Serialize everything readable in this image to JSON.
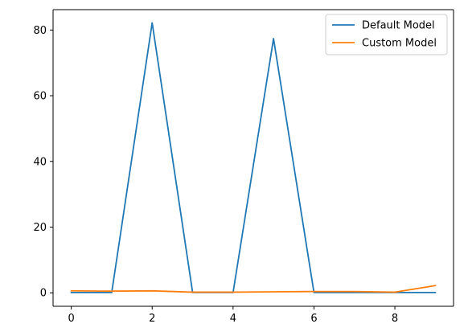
{
  "chart_data": {
    "type": "line",
    "title": "",
    "xlabel": "",
    "ylabel": "",
    "x": [
      0,
      1,
      2,
      3,
      4,
      5,
      6,
      7,
      8,
      9
    ],
    "xlim": [
      -0.45,
      9.45
    ],
    "ylim": [
      -4.1,
      86.2
    ],
    "xticks": [
      "0",
      "2",
      "4",
      "6",
      "8"
    ],
    "yticks": [
      "0",
      "20",
      "40",
      "60",
      "80"
    ],
    "grid": false,
    "legend_position": "top-right",
    "series": [
      {
        "name": "Default Model",
        "color": "#1f77b4",
        "values": [
          0.1,
          0.1,
          82.2,
          0.1,
          0.1,
          77.4,
          0.1,
          0.1,
          0.1,
          0.1
        ]
      },
      {
        "name": "Custom Model",
        "color": "#ff7f0e",
        "values": [
          0.6,
          0.5,
          0.6,
          0.2,
          0.2,
          0.3,
          0.4,
          0.4,
          0.2,
          2.2
        ]
      }
    ]
  }
}
